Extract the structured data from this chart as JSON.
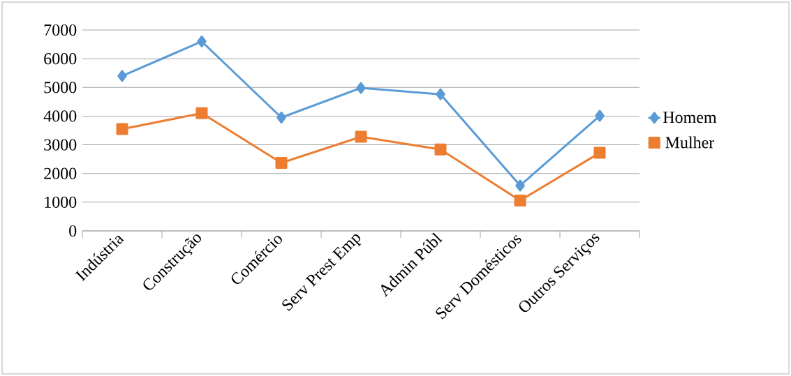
{
  "chart_data": {
    "type": "line",
    "categories": [
      "Indústria",
      "Construção",
      "Comércio",
      "Serv Prest Emp",
      "Admin Públ",
      "Serv Domésticos",
      "Outros Serviços"
    ],
    "series": [
      {
        "name": "Homem",
        "color": "#5b9bd5",
        "marker": "diamond",
        "values": [
          5400,
          6600,
          3950,
          4980,
          4760,
          1580,
          4010
        ]
      },
      {
        "name": "Mulher",
        "color": "#ed7d31",
        "marker": "square",
        "values": [
          3550,
          4100,
          2370,
          3280,
          2840,
          1060,
          2720
        ]
      }
    ],
    "ylim": [
      0,
      7000
    ],
    "yticks": [
      0,
      1000,
      2000,
      3000,
      4000,
      5000,
      6000,
      7000
    ],
    "grid": "y",
    "legend": "right",
    "line_style": "solid"
  }
}
